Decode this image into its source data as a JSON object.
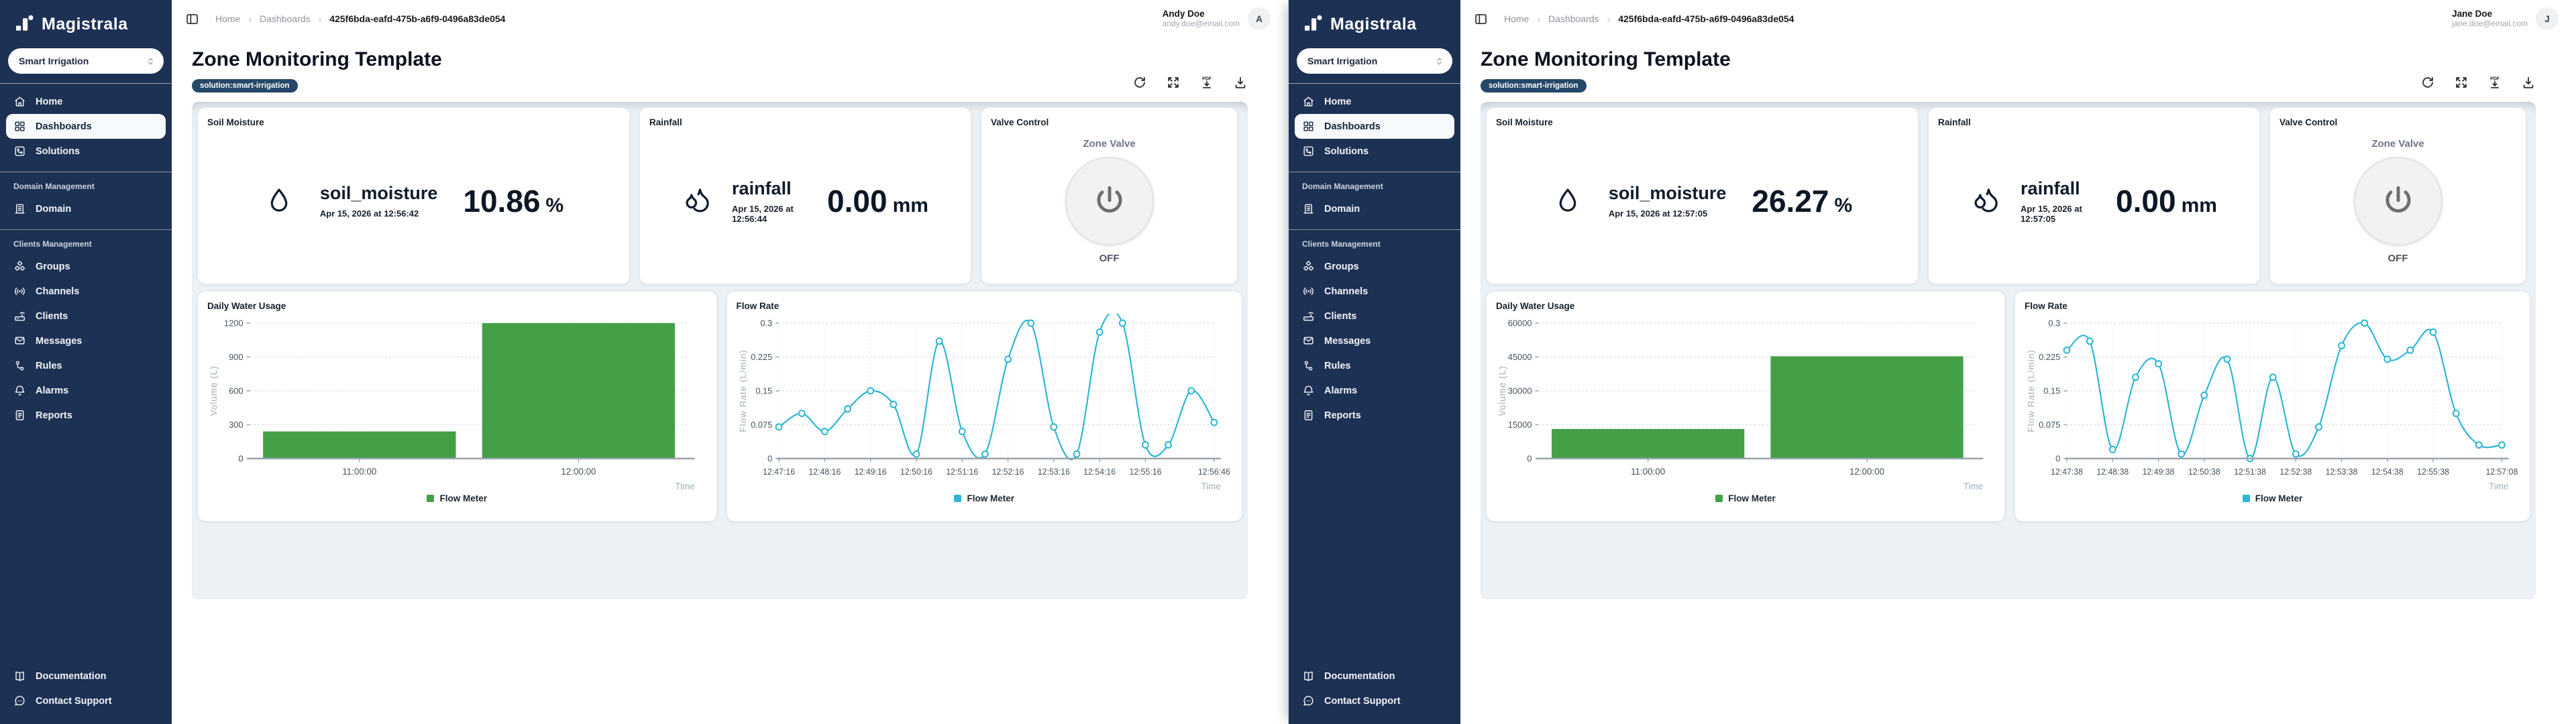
{
  "brand": {
    "name": "Magistrala"
  },
  "colors": {
    "sidebar": "#1d3154",
    "tag_navy": "#254768",
    "bar_green": "#43a047",
    "line_cyan": "#2cb5d6",
    "canvas_bg": "#ebf1f5"
  },
  "sidebar": {
    "workspace_selector": "Smart Irrigation",
    "groups": [
      {
        "label": "",
        "items": [
          {
            "label": "Home",
            "icon": "home-icon",
            "active": false
          },
          {
            "label": "Dashboards",
            "icon": "dashboards-icon",
            "active": true
          },
          {
            "label": "Solutions",
            "icon": "solutions-icon",
            "active": false
          }
        ]
      },
      {
        "label": "Domain Management",
        "items": [
          {
            "label": "Domain",
            "icon": "domain-icon",
            "active": false
          }
        ]
      },
      {
        "label": "Clients Management",
        "items": [
          {
            "label": "Groups",
            "icon": "groups-icon",
            "active": false
          },
          {
            "label": "Channels",
            "icon": "channels-icon",
            "active": false
          },
          {
            "label": "Clients",
            "icon": "clients-icon",
            "active": false
          },
          {
            "label": "Messages",
            "icon": "messages-icon",
            "active": false
          },
          {
            "label": "Rules",
            "icon": "rules-icon",
            "active": false
          },
          {
            "label": "Alarms",
            "icon": "alarms-icon",
            "active": false
          },
          {
            "label": "Reports",
            "icon": "reports-icon",
            "active": false
          }
        ]
      }
    ],
    "footer_items": [
      {
        "label": "Documentation",
        "icon": "documentation-icon"
      },
      {
        "label": "Contact Support",
        "icon": "contact-support-icon"
      }
    ]
  },
  "breadcrumb": {
    "separator": "›",
    "items": [
      "Home",
      "Dashboards",
      "425f6bda-eafd-475b-a6f9-0496a83de054"
    ]
  },
  "page": {
    "title": "Zone Monitoring Template",
    "tag": "solution:smart-irrigation"
  },
  "toolbar": {
    "buttons": [
      "refresh",
      "fullscreen",
      "export-pdf",
      "download"
    ]
  },
  "valve": {
    "title": "Valve Control",
    "label": "Zone Valve",
    "state": "OFF"
  },
  "windows": [
    {
      "user": {
        "name": "Andy Doe",
        "email": "andy.doe@email.com",
        "initial": "A"
      },
      "soil": {
        "title": "Soil Moisture",
        "metric": "soil_moisture",
        "timestamp": "Apr 15, 2026 at 12:56:42",
        "value": "10.86",
        "unit": "%"
      },
      "rain": {
        "title": "Rainfall",
        "metric": "rainfall",
        "timestamp": "Apr 15, 2026 at 12:56:44",
        "value": "0.00",
        "unit": "mm"
      }
    },
    {
      "user": {
        "name": "Jane Doe",
        "email": "jane.doe@email.com",
        "initial": "J"
      },
      "soil": {
        "title": "Soil Moisture",
        "metric": "soil_moisture",
        "timestamp": "Apr 15, 2026 at 12:57:05",
        "value": "26.27",
        "unit": "%"
      },
      "rain": {
        "title": "Rainfall",
        "metric": "rainfall",
        "timestamp": "Apr 15, 2026 at 12:57:05",
        "value": "0.00",
        "unit": "mm"
      }
    }
  ],
  "chart_data": [
    {
      "type": "bar",
      "window": "left",
      "title": "Daily Water Usage",
      "xlabel": "Time",
      "ylabel": "Volume (L)",
      "legend": "Flow Meter",
      "color": "#43a047",
      "ylim": [
        0,
        1200
      ],
      "yticks": [
        0,
        300,
        600,
        900,
        1200
      ],
      "categories": [
        "11:00:00",
        "12:00:00"
      ],
      "values": [
        240,
        1200
      ],
      "grid": true,
      "legend_position": "bottom"
    },
    {
      "type": "line",
      "window": "left",
      "title": "Flow Rate",
      "xlabel": "Time",
      "ylabel": "Flow Rate (L/min)",
      "legend": "Flow Meter",
      "color": "#2cb5d6",
      "ylim": [
        0,
        0.3
      ],
      "yticks": [
        0,
        0.075,
        0.15,
        0.225,
        0.3
      ],
      "x": [
        "12:47:16",
        "12:47:46",
        "12:48:16",
        "12:48:46",
        "12:49:16",
        "12:49:46",
        "12:50:16",
        "12:50:46",
        "12:51:16",
        "12:51:46",
        "12:52:16",
        "12:52:46",
        "12:53:16",
        "12:53:46",
        "12:54:16",
        "12:54:46",
        "12:55:16",
        "12:55:46",
        "12:56:16",
        "12:56:46"
      ],
      "values": [
        0.07,
        0.1,
        0.06,
        0.11,
        0.15,
        0.12,
        0.01,
        0.26,
        0.06,
        0.01,
        0.22,
        0.3,
        0.07,
        0.01,
        0.28,
        0.3,
        0.03,
        0.03,
        0.15,
        0.08
      ],
      "tick_indices": [
        0,
        2,
        4,
        6,
        8,
        10,
        12,
        14,
        16,
        19
      ],
      "x_tick_labels": [
        "12:47:16",
        "12:48:16",
        "12:49:16",
        "12:50:16",
        "12:51:16",
        "12:52:16",
        "12:53:16",
        "12:54:16",
        "12:55:16",
        "12:56:46"
      ],
      "grid": true,
      "legend_position": "bottom"
    },
    {
      "type": "bar",
      "window": "right",
      "title": "Daily Water Usage",
      "xlabel": "Time",
      "ylabel": "Volume (L)",
      "legend": "Flow Meter",
      "color": "#43a047",
      "ylim": [
        0,
        60000
      ],
      "yticks": [
        0,
        15000,
        30000,
        45000,
        60000
      ],
      "categories": [
        "11:00:00",
        "12:00:00"
      ],
      "values": [
        13100,
        45300
      ],
      "grid": true,
      "legend_position": "bottom"
    },
    {
      "type": "line",
      "window": "right",
      "title": "Flow Rate",
      "xlabel": "Time",
      "ylabel": "Flow Rate (L/min)",
      "legend": "Flow Meter",
      "color": "#2cb5d6",
      "ylim": [
        0,
        0.3
      ],
      "yticks": [
        0,
        0.075,
        0.15,
        0.225,
        0.3
      ],
      "x": [
        "12:47:38",
        "12:48:08",
        "12:48:38",
        "12:49:08",
        "12:49:38",
        "12:50:08",
        "12:50:38",
        "12:51:08",
        "12:51:38",
        "12:52:08",
        "12:52:38",
        "12:53:08",
        "12:53:38",
        "12:54:08",
        "12:54:38",
        "12:55:08",
        "12:55:38",
        "12:56:08",
        "12:56:38",
        "12:57:08"
      ],
      "values": [
        0.24,
        0.26,
        0.02,
        0.18,
        0.21,
        0.01,
        0.14,
        0.22,
        0.0,
        0.18,
        0.01,
        0.07,
        0.25,
        0.3,
        0.22,
        0.24,
        0.28,
        0.1,
        0.03,
        0.03
      ],
      "tick_indices": [
        0,
        2,
        4,
        6,
        8,
        10,
        12,
        14,
        16,
        19
      ],
      "x_tick_labels": [
        "12:47:38",
        "12:48:38",
        "12:49:38",
        "12:50:38",
        "12:51:38",
        "12:52:38",
        "12:53:38",
        "12:54:38",
        "12:55:38",
        "12:57:08"
      ],
      "grid": true,
      "legend_position": "bottom"
    }
  ]
}
